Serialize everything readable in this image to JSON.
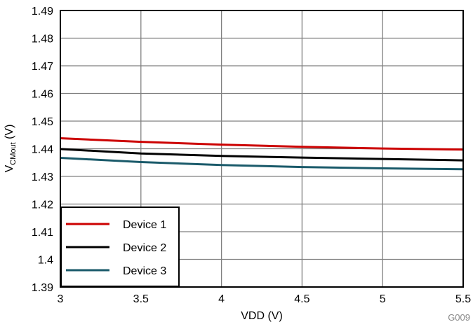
{
  "chart_data": {
    "type": "line",
    "xlabel": "VDD (V)",
    "ylabel_main": "V",
    "ylabel_sub": "CMout",
    "ylabel_unit": " (V)",
    "xlim": [
      3,
      5.5
    ],
    "ylim": [
      1.39,
      1.49
    ],
    "xticks": [
      "3",
      "3.5",
      "4",
      "4.5",
      "5",
      "5.5"
    ],
    "yticks": [
      "1.39",
      "1.4",
      "1.41",
      "1.42",
      "1.43",
      "1.44",
      "1.45",
      "1.46",
      "1.47",
      "1.48",
      "1.49"
    ],
    "grid": true,
    "legend_position": "bottom-left",
    "annotation": "G009",
    "x": [
      3,
      3.5,
      4,
      4.5,
      5,
      5.5
    ],
    "series": [
      {
        "name": "Device 1",
        "color": "#cc0000",
        "values": [
          1.4438,
          1.4425,
          1.4415,
          1.4407,
          1.4401,
          1.4397
        ]
      },
      {
        "name": "Device 2",
        "color": "#000000",
        "values": [
          1.4399,
          1.4383,
          1.4374,
          1.4368,
          1.4363,
          1.4358
        ]
      },
      {
        "name": "Device 3",
        "color": "#1a5a6a",
        "values": [
          1.4367,
          1.4352,
          1.4341,
          1.4334,
          1.4329,
          1.4326
        ]
      }
    ]
  }
}
